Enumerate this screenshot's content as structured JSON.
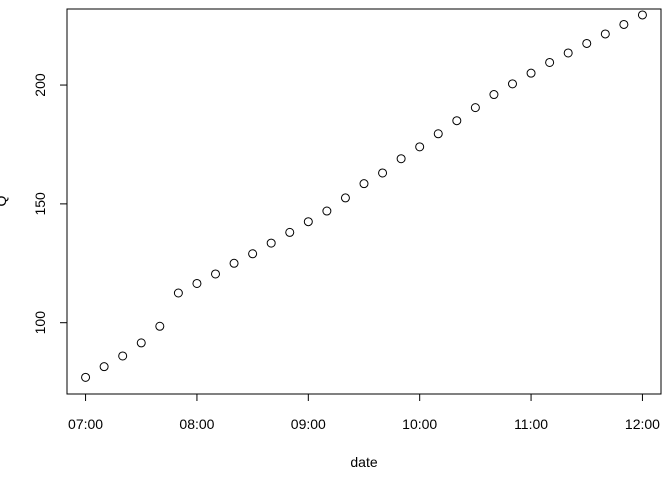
{
  "chart_data": {
    "type": "scatter",
    "title": "",
    "xlabel": "date",
    "ylabel": "Q",
    "xlim": [
      "06:50",
      "12:10"
    ],
    "ylim": [
      70,
      232
    ],
    "x_ticks": [
      "07:00",
      "08:00",
      "09:00",
      "10:00",
      "11:00",
      "12:00"
    ],
    "y_ticks": [
      100,
      150,
      200
    ],
    "grid": false,
    "legend": "none",
    "marker": "open-circle",
    "points": [
      {
        "x": "07:00",
        "y": 77
      },
      {
        "x": "07:10",
        "y": 81.5
      },
      {
        "x": "07:20",
        "y": 86
      },
      {
        "x": "07:30",
        "y": 91.5
      },
      {
        "x": "07:40",
        "y": 98.5
      },
      {
        "x": "07:50",
        "y": 112.5
      },
      {
        "x": "08:00",
        "y": 116.5
      },
      {
        "x": "08:10",
        "y": 120.5
      },
      {
        "x": "08:20",
        "y": 125
      },
      {
        "x": "08:30",
        "y": 129
      },
      {
        "x": "08:40",
        "y": 133.5
      },
      {
        "x": "08:50",
        "y": 138
      },
      {
        "x": "09:00",
        "y": 142.5
      },
      {
        "x": "09:10",
        "y": 147
      },
      {
        "x": "09:20",
        "y": 152.5
      },
      {
        "x": "09:30",
        "y": 158.5
      },
      {
        "x": "09:40",
        "y": 163
      },
      {
        "x": "09:50",
        "y": 169
      },
      {
        "x": "10:00",
        "y": 174
      },
      {
        "x": "10:10",
        "y": 179.5
      },
      {
        "x": "10:20",
        "y": 185
      },
      {
        "x": "10:30",
        "y": 190.5
      },
      {
        "x": "10:40",
        "y": 196
      },
      {
        "x": "10:50",
        "y": 200.5
      },
      {
        "x": "11:00",
        "y": 205
      },
      {
        "x": "11:10",
        "y": 209.5
      },
      {
        "x": "11:20",
        "y": 213.5
      },
      {
        "x": "11:30",
        "y": 217.5
      },
      {
        "x": "11:40",
        "y": 221.5
      },
      {
        "x": "11:50",
        "y": 225.5
      },
      {
        "x": "12:00",
        "y": 229.5
      }
    ]
  }
}
